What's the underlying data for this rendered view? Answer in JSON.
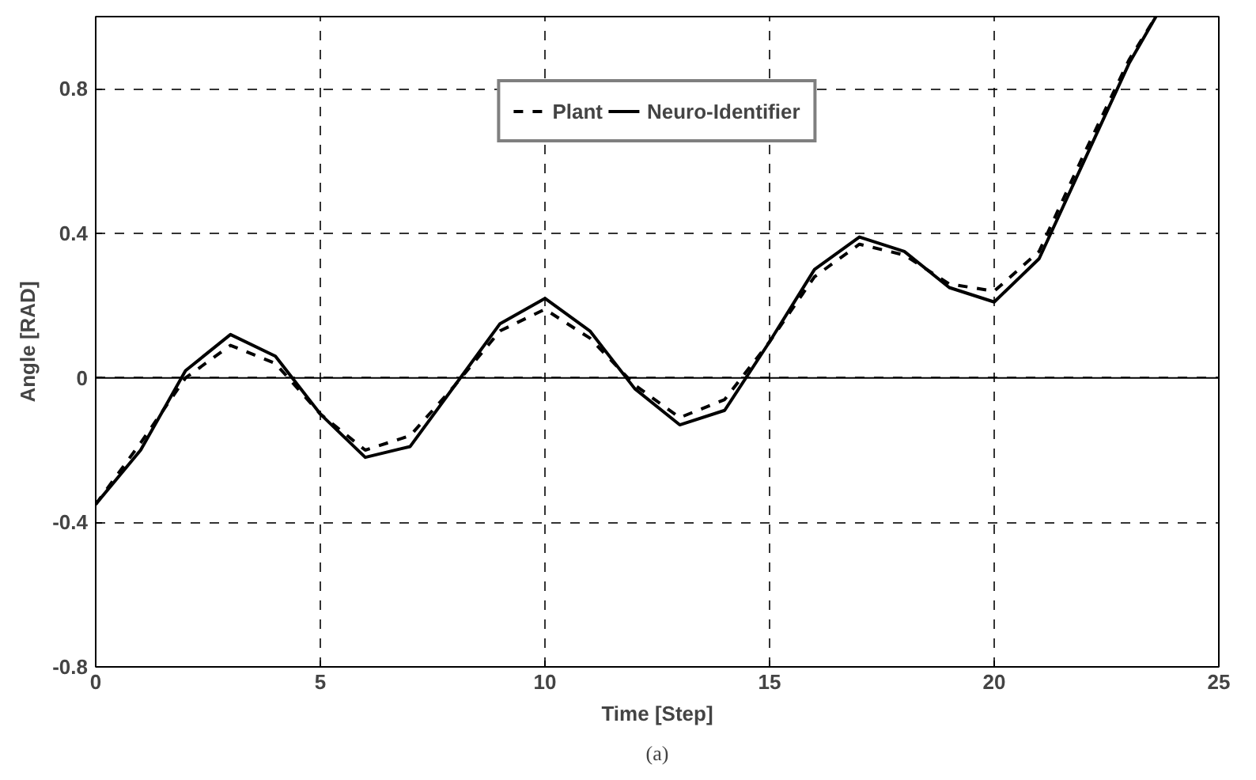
{
  "chart_data": {
    "type": "line",
    "xlabel": "Time [Step]",
    "ylabel": "Angle [RAD]",
    "annotations": [
      "(a)"
    ],
    "xlim": [
      0,
      25
    ],
    "ylim": [
      -0.8,
      1.0
    ],
    "xticks": [
      0,
      5,
      10,
      15,
      20,
      25
    ],
    "yticks": [
      -0.8,
      -0.4,
      0,
      0.4,
      0.8
    ],
    "grid": true,
    "legend": "top",
    "ref_lines": [
      {
        "axis": "y",
        "value": 0,
        "color": "#000000",
        "line_style": "solid"
      }
    ],
    "series": [
      {
        "name": "Plant",
        "color": "#000000",
        "line_style": "dashed",
        "x": [
          0,
          1,
          2,
          3,
          4,
          5,
          6,
          7,
          8,
          9,
          10,
          11,
          12,
          13,
          14,
          15,
          16,
          17,
          18,
          19,
          20,
          21,
          22,
          23,
          23.6
        ],
        "values": [
          -0.35,
          -0.18,
          0.0,
          0.09,
          0.04,
          -0.1,
          -0.2,
          -0.16,
          -0.02,
          0.13,
          0.19,
          0.11,
          -0.02,
          -0.11,
          -0.06,
          0.1,
          0.28,
          0.37,
          0.34,
          0.26,
          0.24,
          0.35,
          0.62,
          0.88,
          1.0
        ]
      },
      {
        "name": "Neuro-Identifier",
        "color": "#000000",
        "line_style": "solid",
        "x": [
          0,
          1,
          2,
          3,
          4,
          5,
          6,
          7,
          8,
          9,
          10,
          11,
          12,
          13,
          14,
          15,
          16,
          17,
          18,
          19,
          20,
          21,
          22,
          23,
          23.6
        ],
        "values": [
          -0.35,
          -0.2,
          0.02,
          0.12,
          0.06,
          -0.1,
          -0.22,
          -0.19,
          -0.02,
          0.15,
          0.22,
          0.13,
          -0.03,
          -0.13,
          -0.09,
          0.1,
          0.3,
          0.39,
          0.35,
          0.25,
          0.21,
          0.33,
          0.6,
          0.87,
          1.0
        ]
      }
    ]
  }
}
